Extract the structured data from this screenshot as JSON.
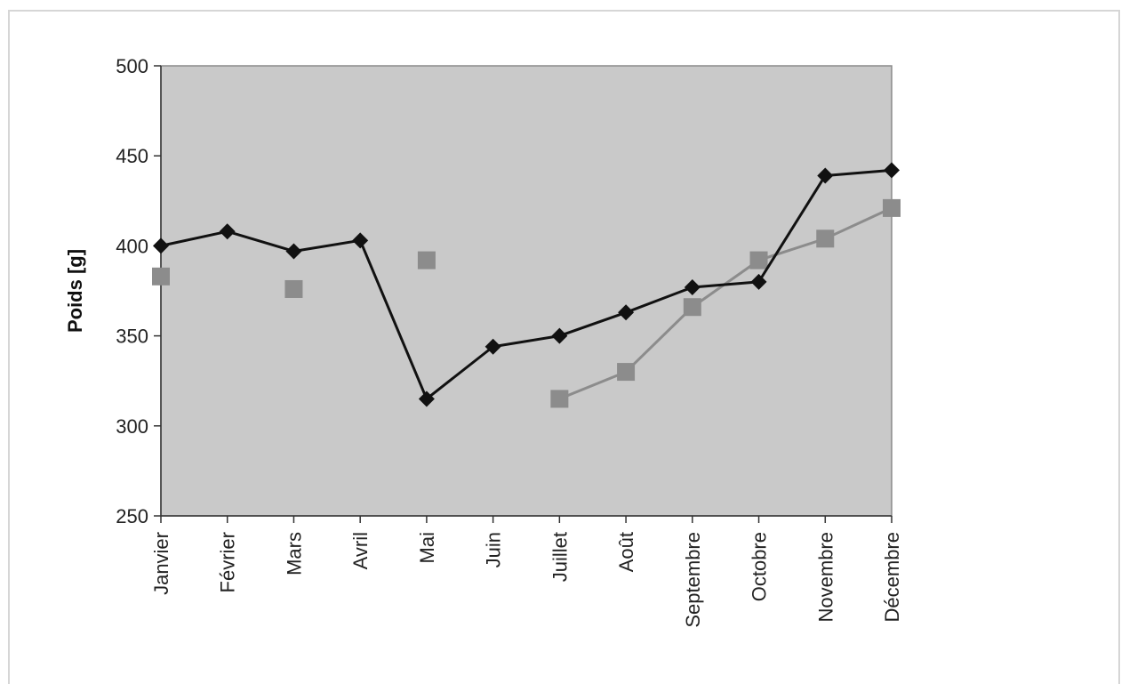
{
  "chart_data": {
    "type": "line",
    "title": "",
    "xlabel": "",
    "ylabel": "Poids [g]",
    "ylim": [
      250,
      500
    ],
    "yticks": [
      250,
      300,
      350,
      400,
      450,
      500
    ],
    "grid": false,
    "plot_background": "#c9c9c9",
    "categories": [
      "Janvier",
      "Février",
      "Mars",
      "Avril",
      "Mai",
      "Juin",
      "Juillet",
      "Août",
      "Septembre",
      "Octobre",
      "Novembre",
      "Décembre"
    ],
    "series": [
      {
        "marker": "diamond",
        "color": "#111111",
        "values": [
          400,
          408,
          397,
          403,
          315,
          344,
          350,
          363,
          377,
          380,
          439,
          442
        ]
      },
      {
        "marker": "square",
        "color": "#8c8c8c",
        "values": [
          383,
          null,
          376,
          null,
          392,
          null,
          315,
          330,
          366,
          392,
          404,
          421
        ]
      }
    ]
  }
}
